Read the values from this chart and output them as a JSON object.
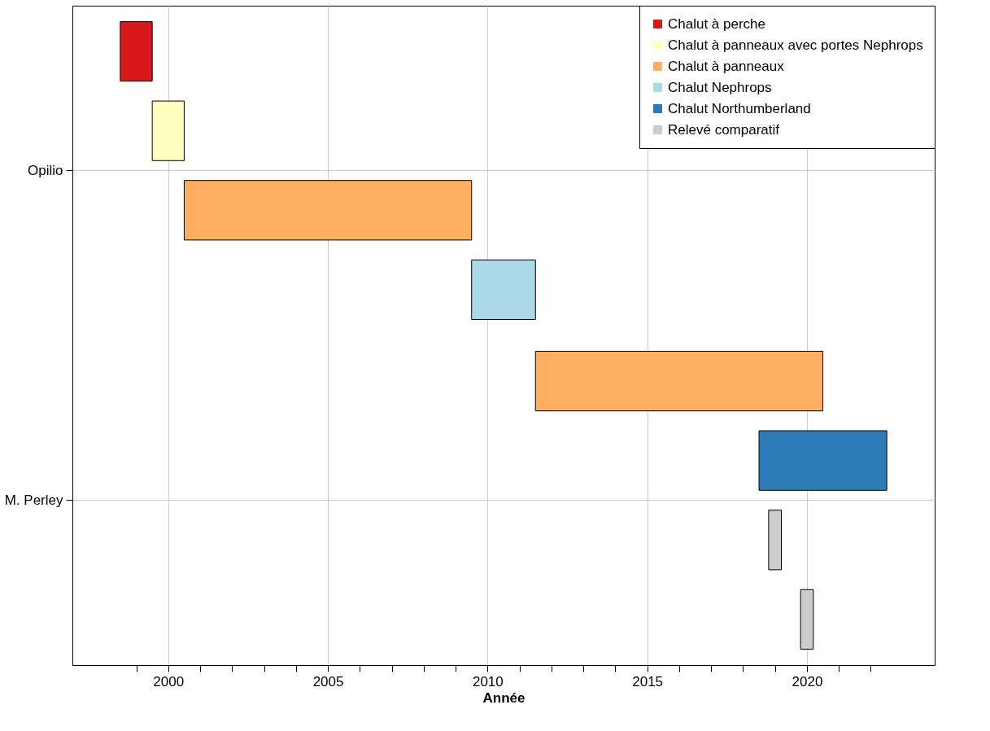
{
  "chart_data": {
    "type": "bar",
    "orientation": "horizontal",
    "xlabel": "Année",
    "categories": [
      "Opilio",
      "M. Perley"
    ],
    "series": [
      {
        "name": "Chalut à perche",
        "color": "#d7191c",
        "values": [
          1,
          null
        ],
        "base": [
          1998.5,
          null
        ]
      },
      {
        "name": "Chalut à panneaux avec portes Nephrops",
        "color": "#ffffbf",
        "values": [
          1,
          null
        ],
        "base": [
          1999.5,
          null
        ]
      },
      {
        "name": "Chalut à panneaux",
        "color": "#fdae61",
        "values": [
          9,
          9
        ],
        "base": [
          2000.5,
          2011.5
        ]
      },
      {
        "name": "Chalut Nephrops",
        "color": "#abd9e9",
        "values": [
          2,
          null
        ],
        "base": [
          2009.5,
          null
        ]
      },
      {
        "name": "Chalut Northumberland",
        "color": "#2c7bb6",
        "values": [
          null,
          4
        ],
        "base": [
          null,
          2018.5
        ]
      },
      {
        "name": "Relevé comparatif",
        "color": "#cccccc",
        "values": [
          null,
          0.4
        ],
        "base": [
          null,
          2018.8
        ]
      },
      {
        "color": "#cccccc",
        "values": [
          null,
          0.4
        ],
        "base": [
          null,
          2019.8
        ]
      }
    ],
    "xlim": [
      1997,
      2024
    ],
    "xticks": [
      {
        "value": 1999,
        "label": null
      },
      2000,
      {
        "value": 2001,
        "label": null
      },
      {
        "value": 2002,
        "label": null
      },
      {
        "value": 2003,
        "label": null
      },
      {
        "value": 2004,
        "label": null
      },
      2005,
      {
        "value": 2006,
        "label": null
      },
      {
        "value": 2007,
        "label": null
      },
      {
        "value": 2008,
        "label": null
      },
      {
        "value": 2009,
        "label": null
      },
      2010,
      {
        "value": 2011,
        "label": null
      },
      {
        "value": 2012,
        "label": null
      },
      {
        "value": 2013,
        "label": null
      },
      {
        "value": 2014,
        "label": null
      },
      2015,
      {
        "value": 2016,
        "label": null
      },
      {
        "value": 2017,
        "label": null
      },
      {
        "value": 2018,
        "label": null
      },
      {
        "value": 2019,
        "label": null
      },
      2020,
      {
        "value": 2021,
        "label": null
      },
      {
        "value": 2022,
        "label": null
      }
    ],
    "grid": true,
    "legend": "top right"
  }
}
